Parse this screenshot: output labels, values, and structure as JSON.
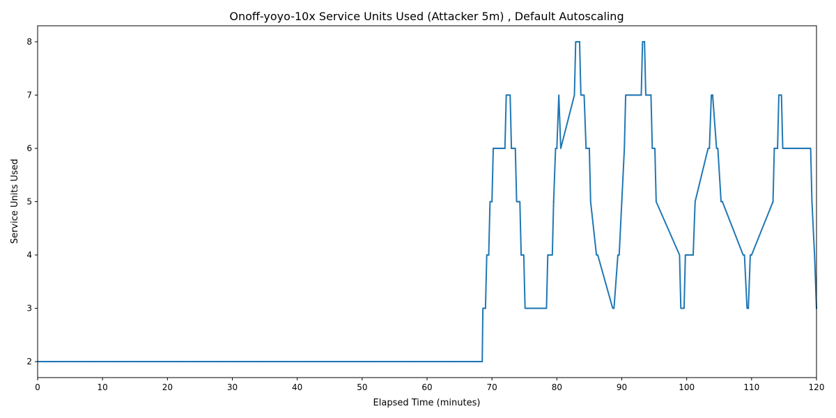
{
  "chart_data": {
    "type": "line",
    "title": "Onoff-yoyo-10x Service Units Used (Attacker 5m) , Default Autoscaling",
    "xlabel": "Elapsed Time (minutes)",
    "ylabel": "Service Units Used",
    "xlim": [
      0,
      120
    ],
    "ylim": [
      1.7,
      8.3
    ],
    "xticks": [
      0,
      10,
      20,
      30,
      40,
      50,
      60,
      70,
      80,
      90,
      100,
      110,
      120
    ],
    "yticks": [
      2,
      3,
      4,
      5,
      6,
      7,
      8
    ],
    "grid": false,
    "series": [
      {
        "color": "#1f77b4",
        "x": [
          0,
          68.5,
          68.6,
          69.0,
          69.2,
          69.5,
          69.7,
          70.0,
          70.2,
          72.0,
          72.2,
          72.8,
          73.0,
          73.6,
          73.8,
          74.3,
          74.5,
          74.9,
          75.1,
          78.4,
          78.6,
          79.3,
          79.5,
          79.8,
          80.0,
          80.3,
          80.6,
          82.7,
          82.9,
          83.5,
          83.7,
          84.2,
          84.5,
          85.0,
          85.2,
          86.1,
          86.3,
          88.6,
          88.8,
          89.4,
          89.6,
          90.4,
          90.6,
          93.0,
          93.2,
          93.5,
          93.7,
          94.5,
          94.7,
          95.1,
          95.3,
          98.9,
          99.1,
          99.6,
          99.8,
          101.0,
          101.3,
          103.3,
          103.5,
          103.8,
          104.0,
          104.6,
          104.8,
          105.3,
          105.5,
          108.7,
          108.9,
          109.3,
          109.5,
          109.8,
          110.0,
          113.3,
          113.5,
          114.0,
          114.2,
          114.6,
          114.8,
          119.1,
          119.3,
          119.7,
          120.0
        ],
        "y": [
          2,
          2,
          3,
          3,
          4,
          4,
          5,
          5,
          6,
          6,
          7,
          7,
          6,
          6,
          5,
          5,
          4,
          4,
          3,
          3,
          4,
          4,
          5,
          6,
          6,
          7,
          6,
          7,
          8,
          8,
          7,
          7,
          6,
          6,
          5,
          4,
          4,
          3,
          3,
          4,
          4,
          6,
          7,
          7,
          8,
          8,
          7,
          7,
          6,
          6,
          5,
          4,
          3,
          3,
          4,
          4,
          5,
          6,
          6,
          7,
          7,
          6,
          6,
          5,
          5,
          4,
          4,
          3,
          3,
          4,
          4,
          5,
          6,
          6,
          7,
          7,
          6,
          6,
          5,
          4,
          3
        ]
      }
    ]
  }
}
